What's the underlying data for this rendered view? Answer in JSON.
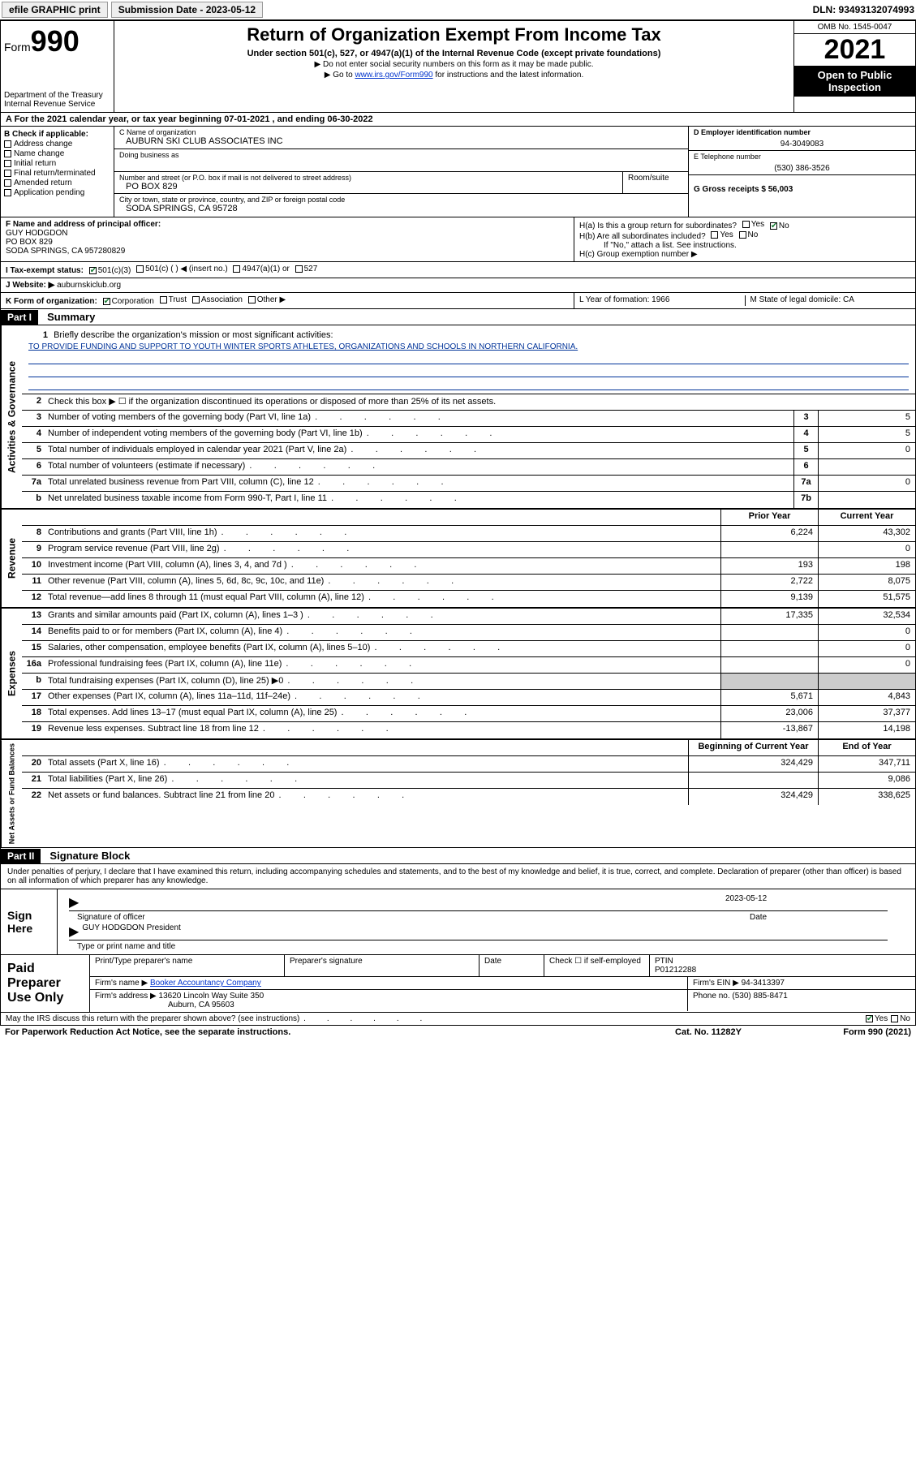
{
  "topbar": {
    "efile_label": "efile GRAPHIC print",
    "submission_label": "Submission Date - 2023-05-12",
    "dln": "DLN: 93493132074993"
  },
  "header": {
    "form_label": "Form",
    "form_num": "990",
    "dept": "Department of the Treasury",
    "irs": "Internal Revenue Service",
    "title": "Return of Organization Exempt From Income Tax",
    "subtitle": "Under section 501(c), 527, or 4947(a)(1) of the Internal Revenue Code (except private foundations)",
    "note1": "▶ Do not enter social security numbers on this form as it may be made public.",
    "note2_pre": "▶ Go to ",
    "note2_link": "www.irs.gov/Form990",
    "note2_post": " for instructions and the latest information.",
    "omb": "OMB No. 1545-0047",
    "year": "2021",
    "open_public": "Open to Public Inspection"
  },
  "period": {
    "text": "A For the 2021 calendar year, or tax year beginning 07-01-2021   , and ending 06-30-2022"
  },
  "checkboxes": {
    "b_label": "B Check if applicable:",
    "items": [
      "Address change",
      "Name change",
      "Initial return",
      "Final return/terminated",
      "Amended return",
      "Application pending"
    ]
  },
  "org": {
    "name_lbl": "C Name of organization",
    "name": "AUBURN SKI CLUB ASSOCIATES INC",
    "dba_lbl": "Doing business as",
    "dba": "",
    "addr_lbl": "Number and street (or P.O. box if mail is not delivered to street address)",
    "room_lbl": "Room/suite",
    "addr": "PO BOX 829",
    "city_lbl": "City or town, state or province, country, and ZIP or foreign postal code",
    "city": "SODA SPRINGS, CA  95728",
    "officer_lbl": "F Name and address of principal officer:",
    "officer_name": "GUY HODGDON",
    "officer_addr1": "PO BOX 829",
    "officer_addr2": "SODA SPRINGS, CA  957280829"
  },
  "cold": {
    "ein_lbl": "D Employer identification number",
    "ein": "94-3049083",
    "tel_lbl": "E Telephone number",
    "tel": "(530) 386-3526",
    "gross_lbl": "G Gross receipts $ 56,003"
  },
  "h_block": {
    "ha": "H(a)  Is this a group return for subordinates?",
    "hb": "H(b)  Are all subordinates included?",
    "hb_note": "If \"No,\" attach a list. See instructions.",
    "hc": "H(c)  Group exemption number ▶",
    "yes": "Yes",
    "no": "No"
  },
  "row_i": {
    "label": "I    Tax-exempt status:",
    "opt1": "501(c)(3)",
    "opt2": "501(c) (   ) ◀ (insert no.)",
    "opt3": "4947(a)(1) or",
    "opt4": "527"
  },
  "row_j": {
    "label": "J   Website: ▶",
    "val": "auburnskiclub.org"
  },
  "row_k": {
    "label": "K Form of organization:",
    "corp": "Corporation",
    "trust": "Trust",
    "assoc": "Association",
    "other": "Other ▶"
  },
  "row_lm": {
    "l": "L Year of formation: 1966",
    "m": "M State of legal domicile: CA"
  },
  "part1": {
    "hdr": "Part I",
    "title": "Summary",
    "vlabels": {
      "gov": "Activities & Governance",
      "rev": "Revenue",
      "exp": "Expenses",
      "net": "Net Assets or Fund Balances"
    },
    "line1_lbl": "Briefly describe the organization's mission or most significant activities:",
    "line1_val": "TO PROVIDE FUNDING AND SUPPORT TO YOUTH WINTER SPORTS ATHLETES, ORGANIZATIONS AND SCHOOLS IN NORTHERN CALIFORNIA.",
    "line2": "Check this box ▶ ☐  if the organization discontinued its operations or disposed of more than 25% of its net assets.",
    "lines_gov": [
      {
        "n": "3",
        "d": "Number of voting members of the governing body (Part VI, line 1a)",
        "c": "3",
        "v": "5"
      },
      {
        "n": "4",
        "d": "Number of independent voting members of the governing body (Part VI, line 1b)",
        "c": "4",
        "v": "5"
      },
      {
        "n": "5",
        "d": "Total number of individuals employed in calendar year 2021 (Part V, line 2a)",
        "c": "5",
        "v": "0"
      },
      {
        "n": "6",
        "d": "Total number of volunteers (estimate if necessary)",
        "c": "6",
        "v": ""
      },
      {
        "n": "7a",
        "d": "Total unrelated business revenue from Part VIII, column (C), line 12",
        "c": "7a",
        "v": "0"
      },
      {
        "n": "b",
        "d": "Net unrelated business taxable income from Form 990-T, Part I, line 11",
        "c": "7b",
        "v": ""
      }
    ],
    "col_prior": "Prior Year",
    "col_current": "Current Year",
    "lines_rev": [
      {
        "n": "8",
        "d": "Contributions and grants (Part VIII, line 1h)",
        "p": "6,224",
        "c": "43,302"
      },
      {
        "n": "9",
        "d": "Program service revenue (Part VIII, line 2g)",
        "p": "",
        "c": "0"
      },
      {
        "n": "10",
        "d": "Investment income (Part VIII, column (A), lines 3, 4, and 7d )",
        "p": "193",
        "c": "198"
      },
      {
        "n": "11",
        "d": "Other revenue (Part VIII, column (A), lines 5, 6d, 8c, 9c, 10c, and 11e)",
        "p": "2,722",
        "c": "8,075"
      },
      {
        "n": "12",
        "d": "Total revenue—add lines 8 through 11 (must equal Part VIII, column (A), line 12)",
        "p": "9,139",
        "c": "51,575"
      }
    ],
    "lines_exp": [
      {
        "n": "13",
        "d": "Grants and similar amounts paid (Part IX, column (A), lines 1–3 )",
        "p": "17,335",
        "c": "32,534"
      },
      {
        "n": "14",
        "d": "Benefits paid to or for members (Part IX, column (A), line 4)",
        "p": "",
        "c": "0"
      },
      {
        "n": "15",
        "d": "Salaries, other compensation, employee benefits (Part IX, column (A), lines 5–10)",
        "p": "",
        "c": "0"
      },
      {
        "n": "16a",
        "d": "Professional fundraising fees (Part IX, column (A), line 11e)",
        "p": "",
        "c": "0"
      },
      {
        "n": "b",
        "d": "Total fundraising expenses (Part IX, column (D), line 25) ▶0",
        "p": "GREY",
        "c": "GREY"
      },
      {
        "n": "17",
        "d": "Other expenses (Part IX, column (A), lines 11a–11d, 11f–24e)",
        "p": "5,671",
        "c": "4,843"
      },
      {
        "n": "18",
        "d": "Total expenses. Add lines 13–17 (must equal Part IX, column (A), line 25)",
        "p": "23,006",
        "c": "37,377"
      },
      {
        "n": "19",
        "d": "Revenue less expenses. Subtract line 18 from line 12",
        "p": "-13,867",
        "c": "14,198"
      }
    ],
    "col_begin": "Beginning of Current Year",
    "col_end": "End of Year",
    "lines_net": [
      {
        "n": "20",
        "d": "Total assets (Part X, line 16)",
        "p": "324,429",
        "c": "347,711"
      },
      {
        "n": "21",
        "d": "Total liabilities (Part X, line 26)",
        "p": "",
        "c": "9,086"
      },
      {
        "n": "22",
        "d": "Net assets or fund balances. Subtract line 21 from line 20",
        "p": "324,429",
        "c": "338,625"
      }
    ]
  },
  "part2": {
    "hdr": "Part II",
    "title": "Signature Block",
    "intro": "Under penalties of perjury, I declare that I have examined this return, including accompanying schedules and statements, and to the best of my knowledge and belief, it is true, correct, and complete. Declaration of preparer (other than officer) is based on all information of which preparer has any knowledge.",
    "sign_here": "Sign Here",
    "sig_officer": "Signature of officer",
    "sig_date_lbl": "Date",
    "sig_date": "2023-05-12",
    "sig_name": "GUY HODGDON  President",
    "sig_name_lbl": "Type or print name and title",
    "paid_label": "Paid Preparer Use Only",
    "prep_name_lbl": "Print/Type preparer's name",
    "prep_sig_lbl": "Preparer's signature",
    "date_lbl": "Date",
    "check_self": "Check ☐ if self-employed",
    "ptin_lbl": "PTIN",
    "ptin": "P01212288",
    "firm_name_lbl": "Firm's name     ▶",
    "firm_name": "Booker Accountancy Company",
    "firm_ein_lbl": "Firm's EIN ▶",
    "firm_ein": "94-3413397",
    "firm_addr_lbl": "Firm's address ▶",
    "firm_addr1": "13620 Lincoln Way Suite 350",
    "firm_addr2": "Auburn, CA  95603",
    "phone_lbl": "Phone no.",
    "phone": "(530) 885-8471"
  },
  "footer": {
    "discuss": "May the IRS discuss this return with the preparer shown above? (see instructions)",
    "yes": "Yes",
    "no": "No",
    "pra": "For Paperwork Reduction Act Notice, see the separate instructions.",
    "cat": "Cat. No. 11282Y",
    "form": "Form 990 (2021)"
  }
}
